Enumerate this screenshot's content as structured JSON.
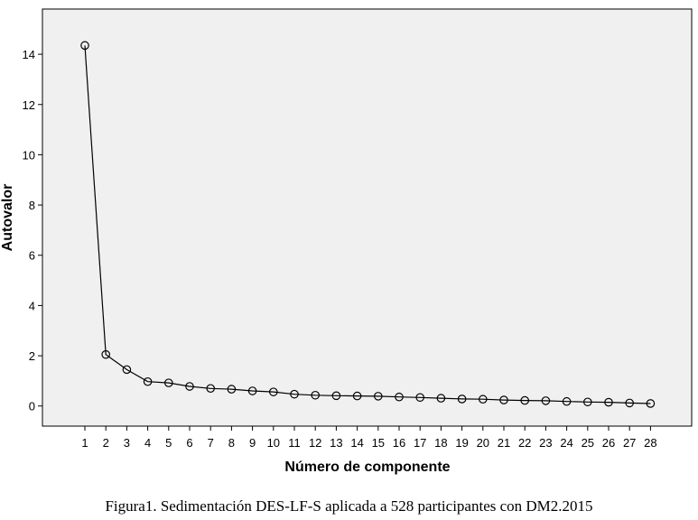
{
  "caption": "Figura1. Sedimentación DES-LF-S aplicada a 528 participantes con DM2.2015",
  "chart_data": {
    "type": "line",
    "xlabel": "Número de componente",
    "ylabel": "Autovalor",
    "xlim": [
      1,
      28
    ],
    "ylim": [
      -0.8,
      15.8
    ],
    "y_ticks": [
      0,
      2,
      4,
      6,
      8,
      10,
      12,
      14
    ],
    "x": [
      1,
      2,
      3,
      4,
      5,
      6,
      7,
      8,
      9,
      10,
      11,
      12,
      13,
      14,
      15,
      16,
      17,
      18,
      19,
      20,
      21,
      22,
      23,
      24,
      25,
      26,
      27,
      28
    ],
    "x_tick_labels": [
      "1",
      "2",
      "3",
      "4",
      "5",
      "6",
      "7",
      "8",
      "9",
      "10",
      "11",
      "12",
      "13",
      "14",
      "15",
      "16",
      "17",
      "18",
      "19",
      "20",
      "21",
      "22",
      "23",
      "24",
      "25",
      "26",
      "27",
      "28"
    ],
    "series": [
      {
        "values": [
          14.35,
          2.05,
          1.45,
          0.97,
          0.92,
          0.78,
          0.7,
          0.67,
          0.6,
          0.56,
          0.47,
          0.43,
          0.41,
          0.4,
          0.39,
          0.36,
          0.34,
          0.31,
          0.28,
          0.27,
          0.24,
          0.22,
          0.21,
          0.18,
          0.16,
          0.15,
          0.12,
          0.1
        ],
        "marker": "open-circle",
        "color": "#000000"
      }
    ],
    "grid": false,
    "plot_background": "#f0f0f0"
  }
}
